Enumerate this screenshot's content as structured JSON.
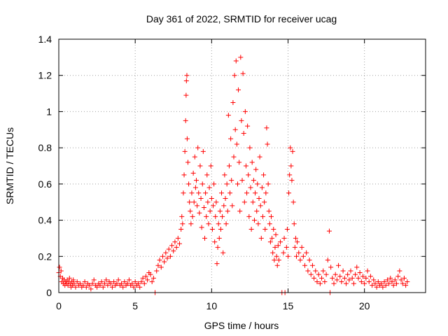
{
  "chart_data": {
    "type": "scatter",
    "title": "Day 361 of 2022, SRMTID for receiver ucag",
    "xlabel": "GPS time / hours",
    "ylabel": "SRMTID / TECUs",
    "xlim": [
      0,
      24
    ],
    "ylim": [
      0,
      1.4
    ],
    "xticks": [
      0,
      5,
      10,
      15,
      20
    ],
    "xtick_labels": [
      "0",
      "5",
      "10",
      "15",
      "20"
    ],
    "yticks": [
      0,
      0.2,
      0.4,
      0.6,
      0.8,
      1.0,
      1.2,
      1.4
    ],
    "ytick_labels": [
      "0",
      "0.2",
      "0.4",
      "0.6",
      "0.8",
      "1",
      "1.2",
      "1.4"
    ],
    "grid": true,
    "marker": "+",
    "series_color": "#ff0000",
    "series": [
      {
        "name": "SRMTID",
        "points": [
          [
            0.0,
            0.11
          ],
          [
            0.05,
            0.14
          ],
          [
            0.1,
            0.09
          ],
          [
            0.15,
            0.12
          ],
          [
            0.2,
            0.06
          ],
          [
            0.25,
            0.08
          ],
          [
            0.3,
            0.05
          ],
          [
            0.35,
            0.07
          ],
          [
            0.4,
            0.04
          ],
          [
            0.45,
            0.06
          ],
          [
            0.5,
            0.05
          ],
          [
            0.55,
            0.07
          ],
          [
            0.6,
            0.04
          ],
          [
            0.65,
            0.06
          ],
          [
            0.7,
            0.08
          ],
          [
            0.75,
            0.05
          ],
          [
            0.8,
            0.03
          ],
          [
            0.85,
            0.06
          ],
          [
            0.9,
            0.04
          ],
          [
            0.95,
            0.07
          ],
          [
            1.0,
            0.05
          ],
          [
            1.1,
            0.03
          ],
          [
            1.2,
            0.06
          ],
          [
            1.3,
            0.04
          ],
          [
            1.4,
            0.05
          ],
          [
            1.5,
            0.03
          ],
          [
            1.6,
            0.04
          ],
          [
            1.7,
            0.06
          ],
          [
            1.8,
            0.03
          ],
          [
            1.9,
            0.05
          ],
          [
            2.0,
            0.04
          ],
          [
            2.1,
            0.02
          ],
          [
            2.2,
            0.05
          ],
          [
            2.3,
            0.07
          ],
          [
            2.4,
            0.04
          ],
          [
            2.5,
            0.03
          ],
          [
            2.6,
            0.05
          ],
          [
            2.7,
            0.04
          ],
          [
            2.8,
            0.06
          ],
          [
            2.9,
            0.03
          ],
          [
            3.0,
            0.05
          ],
          [
            3.1,
            0.07
          ],
          [
            3.2,
            0.04
          ],
          [
            3.3,
            0.06
          ],
          [
            3.4,
            0.05
          ],
          [
            3.5,
            0.03
          ],
          [
            3.6,
            0.06
          ],
          [
            3.7,
            0.04
          ],
          [
            3.8,
            0.05
          ],
          [
            3.9,
            0.07
          ],
          [
            4.0,
            0.04
          ],
          [
            4.1,
            0.05
          ],
          [
            4.2,
            0.03
          ],
          [
            4.3,
            0.06
          ],
          [
            4.4,
            0.04
          ],
          [
            4.5,
            0.05
          ],
          [
            4.6,
            0.07
          ],
          [
            4.7,
            0.04
          ],
          [
            4.8,
            0.05
          ],
          [
            4.9,
            0.03
          ],
          [
            5.0,
            0.06
          ],
          [
            5.1,
            0.04
          ],
          [
            5.2,
            0.05
          ],
          [
            5.3,
            0.03
          ],
          [
            5.4,
            0.06
          ],
          [
            5.5,
            0.08
          ],
          [
            5.6,
            0.05
          ],
          [
            5.7,
            0.09
          ],
          [
            5.8,
            0.07
          ],
          [
            5.9,
            0.11
          ],
          [
            6.0,
            0.1
          ],
          [
            6.1,
            0.06
          ],
          [
            6.2,
            0.08
          ],
          [
            6.3,
            0.0
          ],
          [
            6.4,
            0.12
          ],
          [
            6.5,
            0.15
          ],
          [
            6.6,
            0.18
          ],
          [
            6.7,
            0.14
          ],
          [
            6.8,
            0.2
          ],
          [
            6.9,
            0.17
          ],
          [
            7.0,
            0.22
          ],
          [
            7.1,
            0.19
          ],
          [
            7.2,
            0.24
          ],
          [
            7.3,
            0.2
          ],
          [
            7.4,
            0.26
          ],
          [
            7.5,
            0.23
          ],
          [
            7.6,
            0.28
          ],
          [
            7.7,
            0.25
          ],
          [
            7.8,
            0.3
          ],
          [
            7.9,
            0.27
          ],
          [
            8.0,
            0.35
          ],
          [
            8.05,
            0.42
          ],
          [
            8.1,
            0.38
          ],
          [
            8.15,
            0.55
          ],
          [
            8.2,
            0.65
          ],
          [
            8.25,
            0.78
          ],
          [
            8.3,
            0.95
          ],
          [
            8.33,
            1.09
          ],
          [
            8.35,
            1.17
          ],
          [
            8.38,
            1.2
          ],
          [
            8.4,
            0.85
          ],
          [
            8.45,
            0.72
          ],
          [
            8.5,
            0.6
          ],
          [
            8.55,
            0.5
          ],
          [
            8.6,
            0.45
          ],
          [
            8.65,
            0.38
          ],
          [
            8.7,
            0.55
          ],
          [
            8.75,
            0.42
          ],
          [
            8.8,
            0.66
          ],
          [
            8.85,
            0.5
          ],
          [
            8.9,
            0.75
          ],
          [
            8.95,
            0.58
          ],
          [
            9.0,
            0.62
          ],
          [
            9.05,
            0.48
          ],
          [
            9.1,
            0.8
          ],
          [
            9.15,
            0.55
          ],
          [
            9.2,
            0.44
          ],
          [
            9.25,
            0.7
          ],
          [
            9.3,
            0.52
          ],
          [
            9.35,
            0.36
          ],
          [
            9.4,
            0.6
          ],
          [
            9.45,
            0.78
          ],
          [
            9.5,
            0.47
          ],
          [
            9.55,
            0.3
          ],
          [
            9.6,
            0.55
          ],
          [
            9.65,
            0.42
          ],
          [
            9.7,
            0.65
          ],
          [
            9.75,
            0.5
          ],
          [
            9.8,
            0.38
          ],
          [
            9.85,
            0.58
          ],
          [
            9.9,
            0.45
          ],
          [
            9.95,
            0.7
          ],
          [
            10.0,
            0.52
          ],
          [
            10.05,
            0.35
          ],
          [
            10.1,
            0.48
          ],
          [
            10.15,
            0.6
          ],
          [
            10.2,
            0.28
          ],
          [
            10.25,
            0.42
          ],
          [
            10.3,
            0.5
          ],
          [
            10.35,
            0.16
          ],
          [
            10.4,
            0.25
          ],
          [
            10.45,
            0.38
          ],
          [
            10.5,
            0.3
          ],
          [
            10.55,
            0.45
          ],
          [
            10.6,
            0.35
          ],
          [
            10.65,
            0.55
          ],
          [
            10.7,
            0.42
          ],
          [
            10.75,
            0.22
          ],
          [
            10.8,
            0.48
          ],
          [
            10.85,
            0.65
          ],
          [
            10.9,
            0.52
          ],
          [
            10.95,
            0.38
          ],
          [
            11.0,
            0.6
          ],
          [
            11.05,
            0.45
          ],
          [
            11.1,
            0.98
          ],
          [
            11.15,
            0.7
          ],
          [
            11.2,
            0.55
          ],
          [
            11.25,
            0.85
          ],
          [
            11.3,
            0.62
          ],
          [
            11.35,
            0.48
          ],
          [
            11.4,
            1.05
          ],
          [
            11.45,
            0.75
          ],
          [
            11.5,
            1.2
          ],
          [
            11.55,
            0.9
          ],
          [
            11.6,
            1.28
          ],
          [
            11.65,
            0.82
          ],
          [
            11.7,
            0.6
          ],
          [
            11.75,
            1.12
          ],
          [
            11.8,
            0.72
          ],
          [
            11.85,
            0.45
          ],
          [
            11.9,
            1.3
          ],
          [
            11.95,
            0.95
          ],
          [
            12.0,
            0.62
          ],
          [
            12.05,
            1.21
          ],
          [
            12.1,
            0.88
          ],
          [
            12.15,
            0.5
          ],
          [
            12.2,
            1.0
          ],
          [
            12.25,
            0.7
          ],
          [
            12.3,
            0.55
          ],
          [
            12.35,
            0.92
          ],
          [
            12.4,
            0.65
          ],
          [
            12.45,
            0.42
          ],
          [
            12.5,
            0.8
          ],
          [
            12.55,
            0.58
          ],
          [
            12.6,
            0.35
          ],
          [
            12.65,
            0.72
          ],
          [
            12.7,
            0.5
          ],
          [
            12.75,
            0.62
          ],
          [
            12.8,
            0.4
          ],
          [
            12.85,
            0.55
          ],
          [
            12.9,
            0.68
          ],
          [
            12.95,
            0.45
          ],
          [
            13.0,
            0.6
          ],
          [
            13.05,
            0.38
          ],
          [
            13.1,
            0.52
          ],
          [
            13.15,
            0.75
          ],
          [
            13.2,
            0.48
          ],
          [
            13.25,
            0.3
          ],
          [
            13.3,
            0.58
          ],
          [
            13.35,
            0.42
          ],
          [
            13.4,
            0.65
          ],
          [
            13.45,
            0.5
          ],
          [
            13.5,
            0.35
          ],
          [
            13.55,
            0.55
          ],
          [
            13.6,
            0.91
          ],
          [
            13.65,
            0.82
          ],
          [
            13.7,
            0.6
          ],
          [
            13.75,
            0.45
          ],
          [
            13.8,
            0.38
          ],
          [
            13.85,
            0.28
          ],
          [
            13.9,
            0.42
          ],
          [
            13.95,
            0.3
          ],
          [
            14.0,
            0.22
          ],
          [
            14.05,
            0.35
          ],
          [
            14.1,
            0.18
          ],
          [
            14.15,
            0.25
          ],
          [
            14.2,
            0.32
          ],
          [
            14.25,
            0.2
          ],
          [
            14.3,
            0.15
          ],
          [
            14.35,
            0.26
          ],
          [
            14.4,
            0.18
          ],
          [
            14.5,
            0.28
          ],
          [
            14.6,
            0.0
          ],
          [
            14.7,
            0.22
          ],
          [
            14.75,
            0.3
          ],
          [
            14.8,
            0.0
          ],
          [
            14.9,
            0.25
          ],
          [
            14.95,
            0.35
          ],
          [
            15.0,
            0.2
          ],
          [
            15.05,
            0.55
          ],
          [
            15.1,
            0.65
          ],
          [
            15.15,
            0.8
          ],
          [
            15.2,
            0.7
          ],
          [
            15.25,
            0.62
          ],
          [
            15.3,
            0.78
          ],
          [
            15.35,
            0.5
          ],
          [
            15.4,
            0.38
          ],
          [
            15.45,
            0.25
          ],
          [
            15.5,
            0.3
          ],
          [
            15.55,
            0.2
          ],
          [
            15.6,
            0.28
          ],
          [
            15.7,
            0.22
          ],
          [
            15.8,
            0.18
          ],
          [
            15.9,
            0.25
          ],
          [
            16.0,
            0.2
          ],
          [
            16.1,
            0.15
          ],
          [
            16.2,
            0.22
          ],
          [
            16.3,
            0.12
          ],
          [
            16.4,
            0.18
          ],
          [
            16.5,
            0.1
          ],
          [
            16.6,
            0.15
          ],
          [
            16.7,
            0.08
          ],
          [
            16.8,
            0.12
          ],
          [
            16.9,
            0.06
          ],
          [
            17.0,
            0.1
          ],
          [
            17.1,
            0.05
          ],
          [
            17.2,
            0.08
          ],
          [
            17.3,
            0.12
          ],
          [
            17.4,
            0.06
          ],
          [
            17.5,
            0.1
          ],
          [
            17.6,
            0.18
          ],
          [
            17.7,
            0.34
          ],
          [
            17.75,
            0.0
          ],
          [
            17.8,
            0.14
          ],
          [
            17.9,
            0.08
          ],
          [
            18.0,
            0.05
          ],
          [
            18.1,
            0.1
          ],
          [
            18.2,
            0.07
          ],
          [
            18.3,
            0.15
          ],
          [
            18.4,
            0.09
          ],
          [
            18.5,
            0.06
          ],
          [
            18.6,
            0.12
          ],
          [
            18.7,
            0.08
          ],
          [
            18.8,
            0.05
          ],
          [
            18.9,
            0.1
          ],
          [
            19.0,
            0.07
          ],
          [
            19.1,
            0.12
          ],
          [
            19.2,
            0.08
          ],
          [
            19.3,
            0.05
          ],
          [
            19.4,
            0.1
          ],
          [
            19.5,
            0.14
          ],
          [
            19.6,
            0.08
          ],
          [
            19.7,
            0.11
          ],
          [
            19.8,
            0.06
          ],
          [
            19.9,
            0.09
          ],
          [
            20.0,
            0.05
          ],
          [
            20.1,
            0.08
          ],
          [
            20.2,
            0.12
          ],
          [
            20.3,
            0.06
          ],
          [
            20.4,
            0.09
          ],
          [
            20.5,
            0.04
          ],
          [
            20.6,
            0.07
          ],
          [
            20.7,
            0.05
          ],
          [
            20.8,
            0.03
          ],
          [
            20.9,
            0.06
          ],
          [
            21.0,
            0.04
          ],
          [
            21.1,
            0.05
          ],
          [
            21.2,
            0.03
          ],
          [
            21.3,
            0.06
          ],
          [
            21.4,
            0.04
          ],
          [
            21.5,
            0.07
          ],
          [
            21.6,
            0.05
          ],
          [
            21.7,
            0.08
          ],
          [
            21.8,
            0.06
          ],
          [
            21.9,
            0.04
          ],
          [
            22.0,
            0.07
          ],
          [
            22.1,
            0.05
          ],
          [
            22.2,
            0.09
          ],
          [
            22.3,
            0.12
          ],
          [
            22.4,
            0.07
          ],
          [
            22.5,
            0.05
          ],
          [
            22.6,
            0.08
          ],
          [
            22.7,
            0.04
          ],
          [
            22.8,
            0.06
          ]
        ]
      }
    ]
  }
}
